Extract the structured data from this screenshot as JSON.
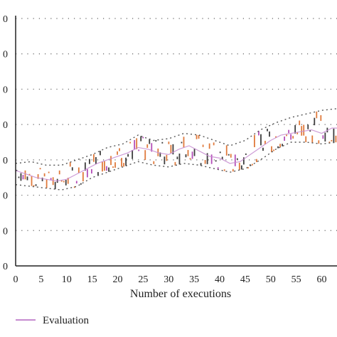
{
  "chart_data": {
    "type": "line",
    "xlabel": "Number of executions",
    "x_ticks": [
      "0",
      "5",
      "10",
      "15",
      "20",
      "25",
      "30",
      "35",
      "40",
      "45",
      "50",
      "55",
      "60"
    ],
    "y_ticks": [
      "0",
      "0",
      "0",
      "0",
      "0",
      "0",
      "0",
      "0"
    ],
    "xlim": [
      0,
      63
    ],
    "ylim": [
      0,
      7
    ],
    "grid": true,
    "legend_position": "bottom-left",
    "colors": {
      "grey": "#3d3d3d",
      "orange": "#e07a3c",
      "purple": "#b44fb8",
      "envelope": "#555555",
      "grid": "#666666",
      "evaluation": "#c68bd0"
    },
    "series": [
      {
        "name": "Evaluation",
        "x": [
          0,
          2,
          4,
          6,
          8,
          10,
          12,
          14,
          16,
          18,
          20,
          22,
          24,
          26,
          28,
          30,
          32,
          34,
          36,
          38,
          40,
          42,
          44,
          46,
          48,
          50,
          52,
          54,
          56,
          58,
          60,
          62,
          63
        ],
        "values": [
          2.7,
          2.6,
          2.5,
          2.45,
          2.4,
          2.45,
          2.6,
          2.75,
          2.9,
          3.0,
          3.1,
          3.2,
          3.35,
          3.3,
          3.2,
          3.15,
          3.3,
          3.4,
          3.25,
          3.1,
          3.05,
          2.9,
          2.95,
          3.15,
          3.35,
          3.55,
          3.7,
          3.75,
          3.8,
          3.85,
          3.75,
          3.9,
          3.9
        ]
      }
    ],
    "upper_envelope": {
      "x": [
        0,
        3,
        6,
        9,
        12,
        15,
        18,
        21,
        24,
        27,
        30,
        33,
        36,
        39,
        42,
        45,
        48,
        51,
        54,
        57,
        60,
        63
      ],
      "values": [
        2.9,
        2.95,
        2.85,
        2.85,
        3.0,
        3.15,
        3.35,
        3.45,
        3.7,
        3.55,
        3.6,
        3.75,
        3.7,
        3.55,
        3.4,
        3.55,
        3.85,
        4.05,
        4.2,
        4.3,
        4.4,
        4.45
      ]
    },
    "lower_envelope": {
      "x": [
        0,
        3,
        6,
        9,
        12,
        15,
        18,
        21,
        24,
        27,
        30,
        33,
        36,
        39,
        42,
        45,
        48,
        51,
        54,
        57,
        60,
        63
      ],
      "values": [
        2.3,
        2.25,
        2.2,
        2.15,
        2.25,
        2.5,
        2.65,
        2.8,
        2.95,
        2.85,
        2.8,
        2.9,
        2.85,
        2.75,
        2.65,
        2.75,
        3.0,
        3.3,
        3.5,
        3.5,
        3.45,
        3.5
      ]
    }
  },
  "legend": {
    "evaluation_label": "Evaluation"
  }
}
